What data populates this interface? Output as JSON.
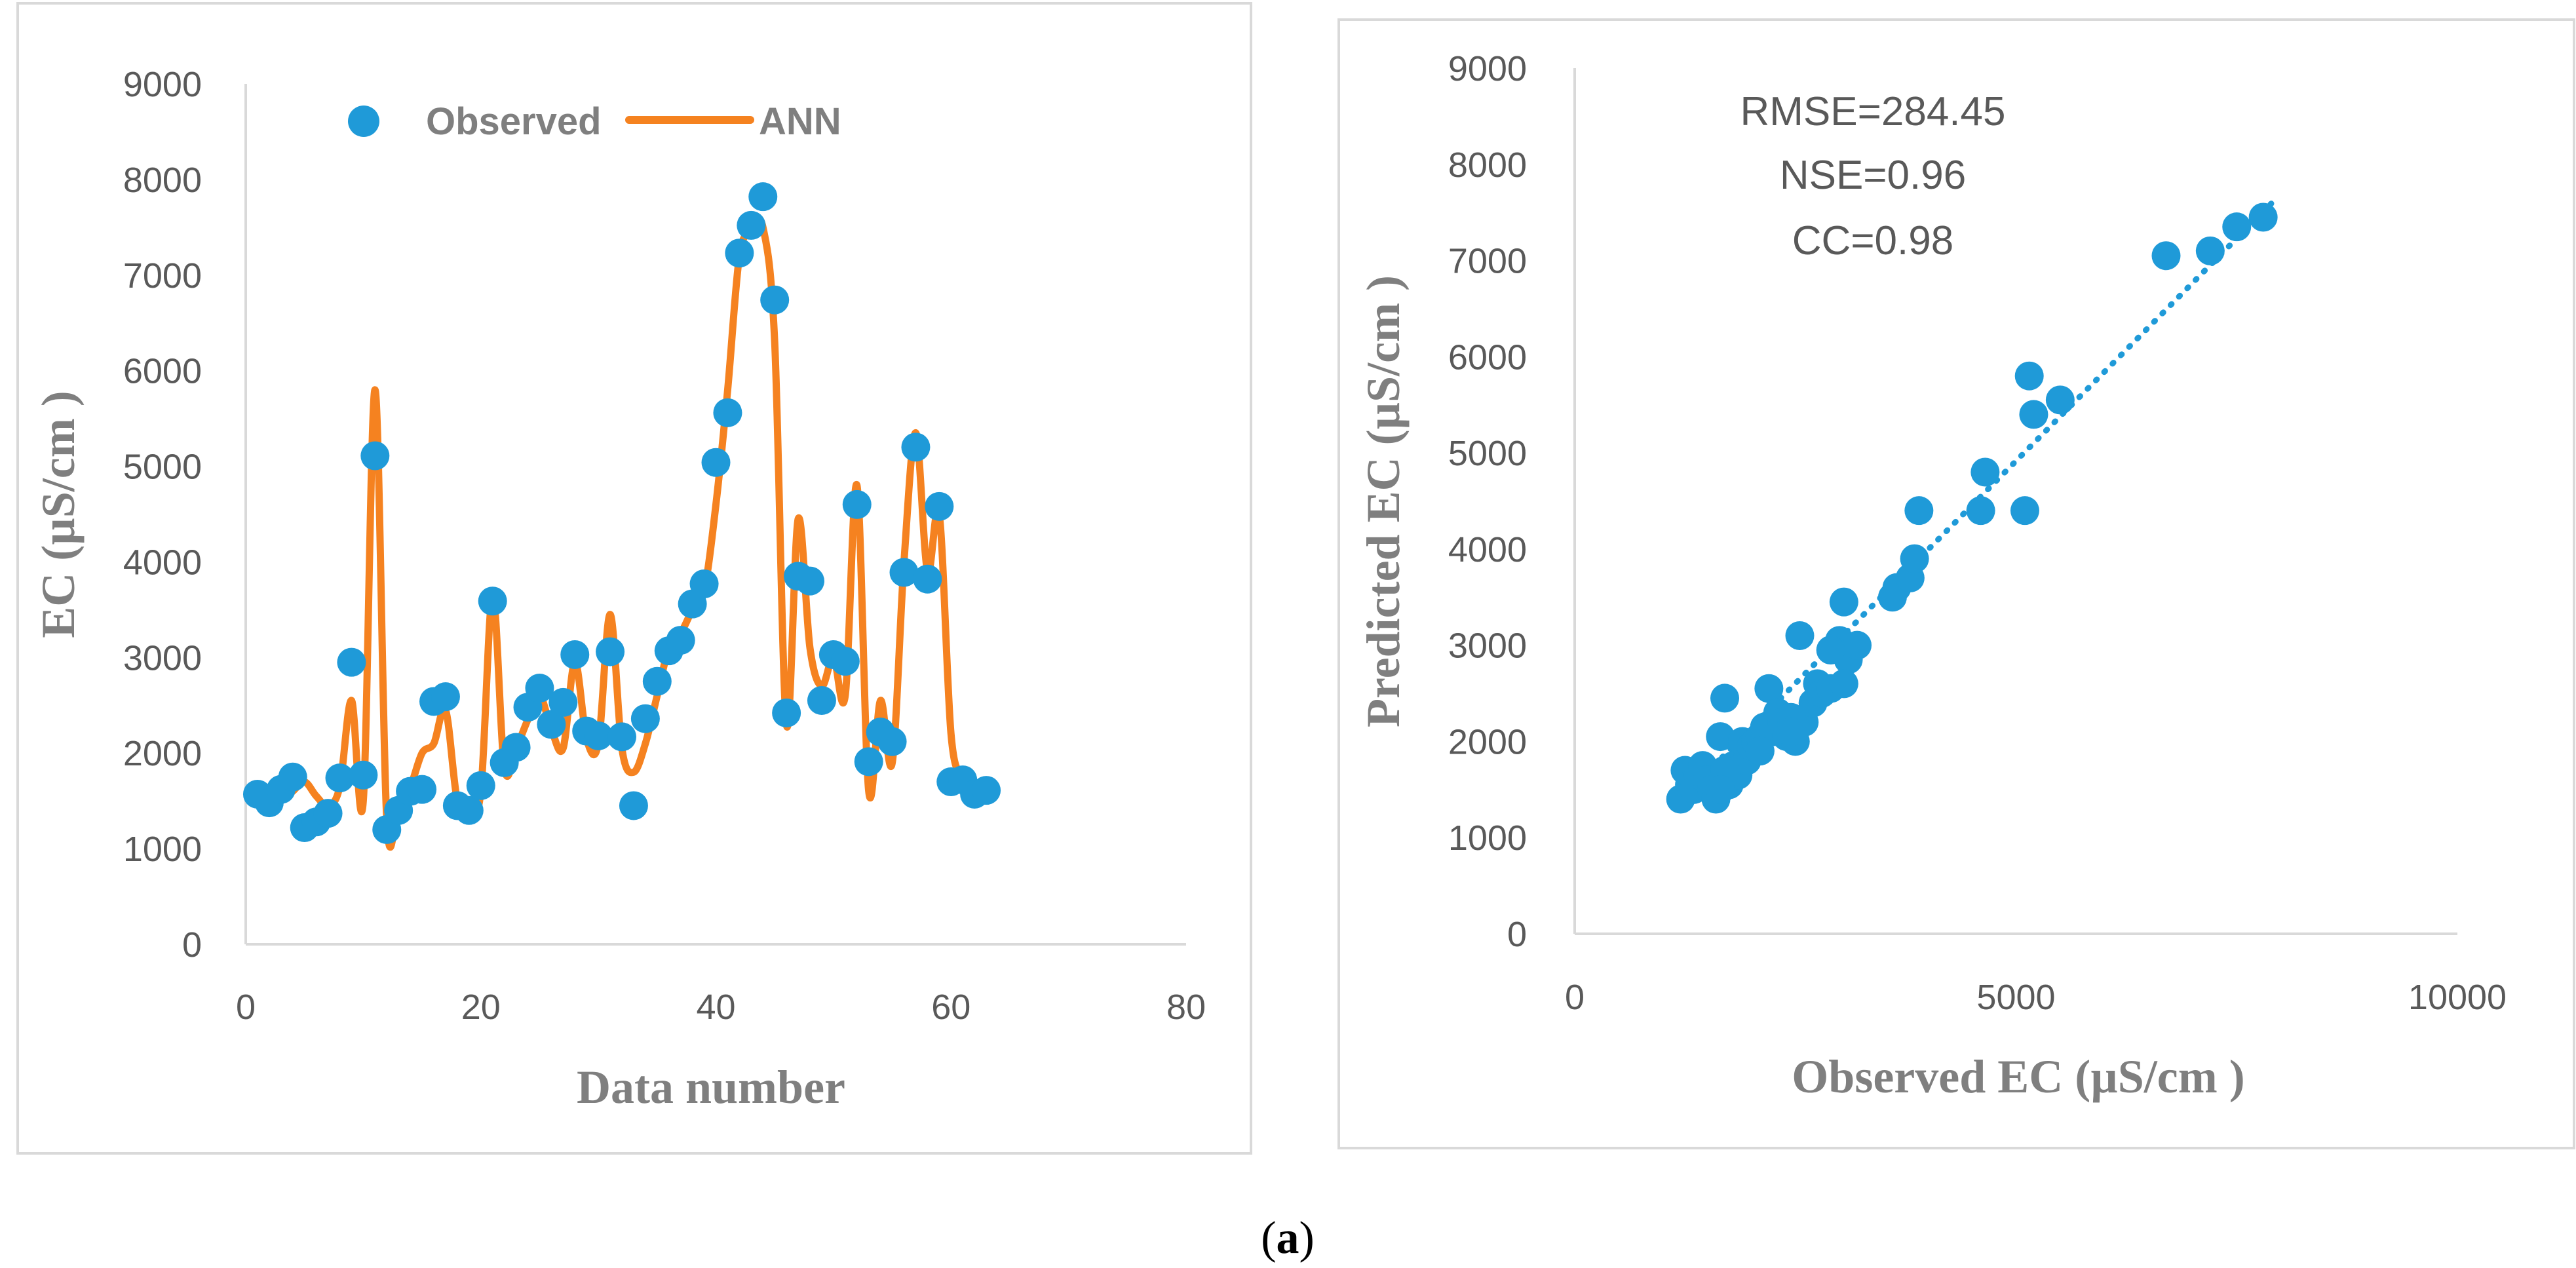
{
  "colors": {
    "observed": "#1f9ad8",
    "ann": "#f58220",
    "axis": "#d9d9d9",
    "frame": "#d9d9d9",
    "tick_text": "#595959",
    "title_text": "#7f7f7f"
  },
  "caption": {
    "prefix": "(",
    "letter": "a",
    "suffix": ")"
  },
  "chart_data": [
    {
      "type": "line",
      "title": "",
      "xlabel": "Data number",
      "ylabel": "EC (µS/cm )",
      "xlim": [
        0,
        80
      ],
      "ylim": [
        0,
        9000
      ],
      "x_ticks": [
        "0",
        "20",
        "40",
        "60",
        "80"
      ],
      "y_ticks": [
        "0",
        "1000",
        "2000",
        "3000",
        "4000",
        "5000",
        "6000",
        "7000",
        "8000",
        "9000"
      ],
      "legend": {
        "observed": "Observed",
        "ann": "ANN",
        "position": "top"
      },
      "series": [
        {
          "name": "Observed",
          "style": "markers",
          "x": [
            1,
            2,
            3,
            4,
            5,
            6,
            7,
            8,
            9,
            10,
            11,
            12,
            13,
            14,
            15,
            16,
            17,
            18,
            19,
            20,
            21,
            22,
            23,
            24,
            25,
            26,
            27,
            28,
            29,
            30,
            31,
            32,
            33,
            34,
            35,
            36,
            37,
            38,
            39,
            40,
            41,
            42,
            43,
            44,
            45,
            46,
            47,
            48,
            49,
            50,
            51,
            52,
            53,
            54,
            55,
            56,
            57,
            58,
            59,
            60,
            61,
            62,
            63
          ],
          "values": [
            1570,
            1480,
            1620,
            1750,
            1220,
            1280,
            1370,
            1740,
            2950,
            1770,
            5110,
            1200,
            1400,
            1600,
            1620,
            2540,
            2590,
            1450,
            1400,
            1660,
            3590,
            1900,
            2060,
            2480,
            2680,
            2300,
            2530,
            3030,
            2230,
            2180,
            3060,
            2170,
            1450,
            2360,
            2750,
            3070,
            3180,
            3560,
            3770,
            5040,
            5560,
            7230,
            7520,
            7820,
            6740,
            2420,
            3850,
            3800,
            2550,
            3030,
            2960,
            4600,
            1910,
            2220,
            2120,
            3890,
            5200,
            3820,
            4580,
            1700,
            1720,
            1570,
            1610
          ]
        },
        {
          "name": "ANN",
          "style": "smooth-line",
          "x": [
            1,
            2,
            3,
            4,
            5,
            6,
            7,
            8,
            9,
            10,
            11,
            12,
            13,
            14,
            15,
            16,
            17,
            18,
            19,
            20,
            21,
            22,
            23,
            24,
            25,
            26,
            27,
            28,
            29,
            30,
            31,
            32,
            33,
            34,
            35,
            36,
            37,
            38,
            39,
            40,
            41,
            42,
            43,
            44,
            45,
            46,
            47,
            48,
            49,
            50,
            51,
            52,
            53,
            54,
            55,
            56,
            57,
            58,
            59,
            60,
            61,
            62,
            63
          ],
          "values": [
            1550,
            1450,
            1500,
            1600,
            1700,
            1550,
            1450,
            1650,
            2550,
            1500,
            5800,
            1300,
            1500,
            1650,
            2000,
            2100,
            2450,
            1500,
            1400,
            1600,
            3650,
            1850,
            2050,
            2350,
            2600,
            2250,
            2050,
            2950,
            2150,
            2100,
            3450,
            2050,
            1800,
            2100,
            2600,
            3100,
            3250,
            3500,
            3700,
            4600,
            5800,
            7200,
            7450,
            7500,
            6300,
            2300,
            4450,
            3100,
            2700,
            3000,
            2600,
            4800,
            1600,
            2550,
            1900,
            4000,
            5350,
            3900,
            4500,
            2200,
            1750,
            1600,
            1550
          ]
        }
      ]
    },
    {
      "type": "scatter",
      "title": "",
      "xlabel": "Observed EC (µS/cm )",
      "ylabel": "Predicted  EC (µS/cm )",
      "xlim": [
        0,
        10000
      ],
      "ylim": [
        0,
        9000
      ],
      "x_ticks": [
        "0",
        "5000",
        "10000"
      ],
      "y_ticks": [
        "0",
        "1000",
        "2000",
        "3000",
        "4000",
        "5000",
        "6000",
        "7000",
        "8000",
        "9000"
      ],
      "annotations": [
        "RMSE=284.45",
        "NSE=0.96",
        "CC=0.98"
      ],
      "trendline": {
        "style": "dotted",
        "x": [
          1200,
          7900
        ],
        "y": [
          1400,
          7600
        ]
      },
      "series": [
        {
          "name": "Observed vs Predicted",
          "x": [
            1200,
            1250,
            1300,
            1350,
            1400,
            1450,
            1500,
            1550,
            1600,
            1650,
            1700,
            1750,
            1800,
            1850,
            1900,
            1950,
            2000,
            2050,
            2100,
            2150,
            2200,
            2250,
            2300,
            2350,
            2400,
            2450,
            2500,
            2550,
            2600,
            2700,
            2750,
            2800,
            2900,
            3000,
            3050,
            3100,
            3200,
            3600,
            3650,
            3800,
            3850,
            3900,
            4600,
            4650,
            5100,
            5150,
            5200,
            5500,
            6700,
            7200,
            7500,
            7800,
            1700,
            2100,
            2450,
            3050,
            1650,
            2900
          ],
          "y": [
            1400,
            1700,
            1550,
            1500,
            1650,
            1750,
            1600,
            1500,
            1400,
            2050,
            2450,
            1550,
            1750,
            1650,
            2000,
            1800,
            1950,
            2000,
            2050,
            2150,
            2550,
            2100,
            2300,
            2200,
            2050,
            2250,
            2000,
            3100,
            2200,
            2400,
            2600,
            2500,
            2550,
            3050,
            3450,
            2850,
            3000,
            3500,
            3600,
            3700,
            3900,
            4400,
            4400,
            4800,
            4400,
            5800,
            5400,
            5550,
            7050,
            7100,
            7350,
            7450,
            1700,
            1900,
            2100,
            2600,
            1500,
            2950
          ]
        }
      ]
    }
  ]
}
